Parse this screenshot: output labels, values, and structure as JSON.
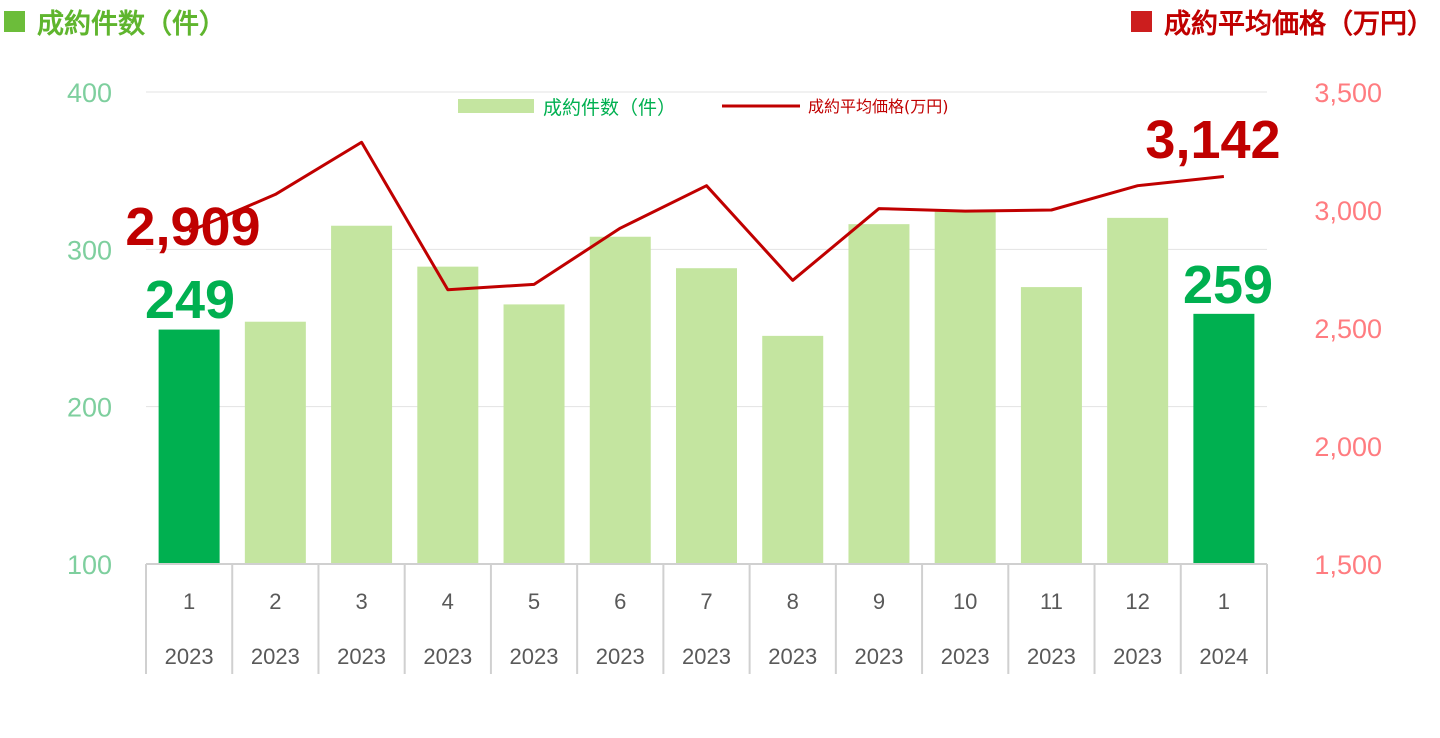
{
  "legend_titles": {
    "left": "成約件数（件）",
    "right": "成約平均価格（万円）"
  },
  "colors": {
    "bar": "#c4e5a0",
    "bar_highlight": "#00b050",
    "line": "#c00000",
    "left_axis_text": "#7ecf9e",
    "right_axis_text": "#ff7c80",
    "left_callout": "#00b050",
    "right_callout": "#c00000"
  },
  "chart_data": {
    "type": "bar+line",
    "categories": [
      "1",
      "2",
      "3",
      "4",
      "5",
      "6",
      "7",
      "8",
      "9",
      "10",
      "11",
      "12",
      "1"
    ],
    "years": [
      "2023",
      "2023",
      "2023",
      "2023",
      "2023",
      "2023",
      "2023",
      "2023",
      "2023",
      "2023",
      "2023",
      "2023",
      "2024"
    ],
    "series": [
      {
        "name": "成約件数（件）",
        "type": "bar",
        "axis": "left",
        "values": [
          249,
          254,
          315,
          289,
          265,
          308,
          288,
          245,
          316,
          324,
          276,
          320,
          259
        ],
        "highlight_indices": [
          0,
          12
        ]
      },
      {
        "name": "成約平均価格(万円)",
        "type": "line",
        "axis": "right",
        "values": [
          2909,
          3066,
          3287,
          2662,
          2685,
          2923,
          3103,
          2702,
          3006,
          2995,
          3000,
          3103,
          3142
        ]
      }
    ],
    "left_axis": {
      "min": 100,
      "max": 400,
      "ticks": [
        "100",
        "200",
        "300",
        "400"
      ]
    },
    "right_axis": {
      "min": 1500,
      "max": 3500,
      "ticks": [
        "1,500",
        "2,000",
        "2,500",
        "3,000",
        "3,500"
      ]
    },
    "callouts": [
      {
        "series": "bar",
        "index": 0,
        "text": "249"
      },
      {
        "series": "bar",
        "index": 12,
        "text": "259"
      },
      {
        "series": "line",
        "index": 0,
        "text": "2,909"
      },
      {
        "series": "line",
        "index": 12,
        "text": "3,142"
      }
    ],
    "grid": true,
    "legend": "top-center"
  }
}
